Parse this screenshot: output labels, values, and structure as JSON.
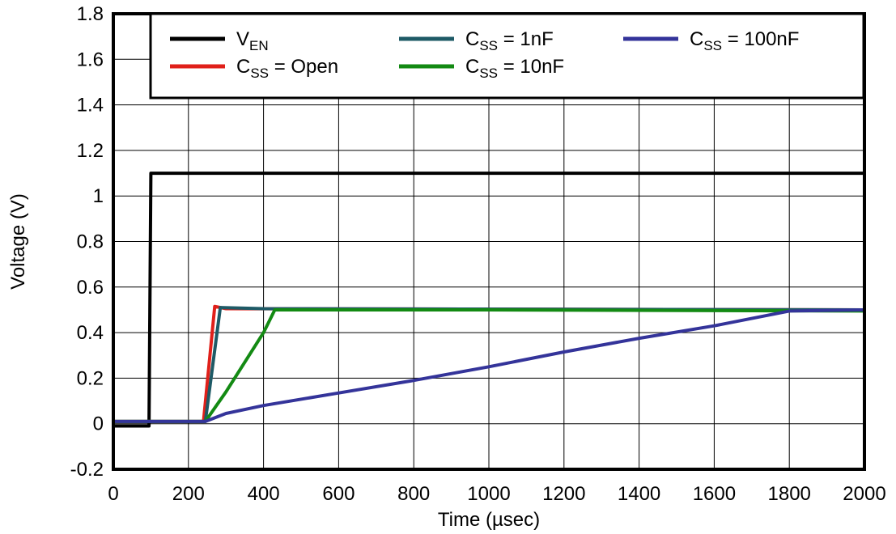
{
  "chart_data": {
    "type": "line",
    "title": "",
    "xlabel": "Time (µsec)",
    "ylabel": "Voltage (V)",
    "xlim": [
      0,
      2000
    ],
    "ylim": [
      -0.2,
      1.8
    ],
    "grid": true,
    "legend_position": "top",
    "x_ticks": [
      "0",
      "200",
      "400",
      "600",
      "800",
      "1000",
      "1200",
      "1400",
      "1600",
      "1800",
      "2000"
    ],
    "y_ticks": [
      "-0.2",
      "0",
      "0.2",
      "0.4",
      "0.6",
      "0.8",
      "1",
      "1.2",
      "1.4",
      "1.6",
      "1.8"
    ],
    "series": [
      {
        "name": "VEN",
        "legend_main": "V",
        "legend_sub": "EN",
        "legend_suffix": "",
        "color": "#000000",
        "x": [
          0,
          95,
          100,
          2000
        ],
        "y": [
          -0.01,
          -0.01,
          1.1,
          1.1
        ]
      },
      {
        "name": "CSS = Open",
        "legend_main": "C",
        "legend_sub": "SS",
        "legend_suffix": " = Open",
        "color": "#e0201a",
        "x": [
          0,
          240,
          270,
          300,
          2000
        ],
        "y": [
          0.01,
          0.01,
          0.515,
          0.505,
          0.5
        ]
      },
      {
        "name": "CSS = 1nF",
        "legend_main": "C",
        "legend_sub": "SS",
        "legend_suffix": " = 1nF",
        "color": "#1e5a66",
        "x": [
          0,
          245,
          285,
          400,
          2000
        ],
        "y": [
          0.01,
          0.01,
          0.51,
          0.505,
          0.5
        ]
      },
      {
        "name": "CSS = 10nF",
        "legend_main": "C",
        "legend_sub": "SS",
        "legend_suffix": " = 10nF",
        "color": "#138a13",
        "x": [
          0,
          245,
          300,
          350,
          400,
          430,
          1000,
          2000
        ],
        "y": [
          0.01,
          0.01,
          0.14,
          0.27,
          0.4,
          0.5,
          0.5,
          0.495
        ]
      },
      {
        "name": "CSS = 100nF",
        "legend_main": "C",
        "legend_sub": "SS",
        "legend_suffix": " = 100nF",
        "color": "#34349a",
        "x": [
          0,
          245,
          300,
          400,
          600,
          800,
          1000,
          1200,
          1400,
          1600,
          1800,
          2000
        ],
        "y": [
          0.01,
          0.01,
          0.045,
          0.08,
          0.135,
          0.19,
          0.25,
          0.315,
          0.375,
          0.43,
          0.495,
          0.5
        ]
      }
    ]
  }
}
